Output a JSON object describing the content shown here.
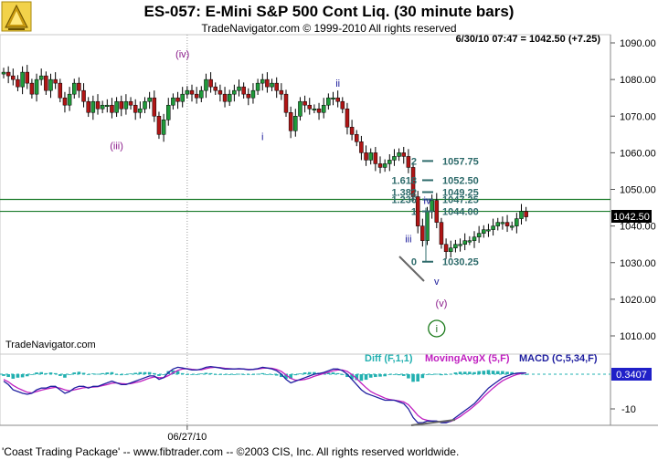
{
  "header": {
    "title": "ES-057:  E-Mini S&P 500 Cont Liq.  (30 minute bars)",
    "subtitle": "TradeNavigator.com © 1999-2010 All rights reserved",
    "last_quote": "6/30/10 07:47 = 1042.50 (+7.25)",
    "watermark": "TradeNavigator.com"
  },
  "footer": {
    "text": "'Coast Trading Package' -- www.fibtrader.com -- ©2003 CIS, Inc. All rights reserved worldwide."
  },
  "colors": {
    "up_bar": "#1f9a3a",
    "down_bar": "#b01515",
    "hline": "#1a7a2a",
    "wave_purple": "#8a1a8a",
    "wave_blue": "#1a1a9a",
    "fib_text": "#2e6b6b",
    "diff_hist": "#22b0b0",
    "movavg": "#c020c0",
    "macd": "#2020a0"
  },
  "chart_data": [
    {
      "type": "candlestick",
      "ylim": [
        1002,
        1093
      ],
      "yticks": [
        1010,
        1020,
        1030,
        1040,
        1050,
        1060,
        1070,
        1080,
        1090
      ],
      "ytick_labels": [
        "1010.00",
        "1020.00",
        "1030.00",
        "1040.00",
        "1050.00",
        "1060.00",
        "1070.00",
        "1080.00",
        "1090.00"
      ],
      "xtick": {
        "label": "06/27/10",
        "bar_index": 39
      },
      "bars_count": 112,
      "closes": [
        1082,
        1081,
        1080,
        1078,
        1082,
        1079,
        1076,
        1080,
        1081,
        1077,
        1080,
        1079,
        1075,
        1073,
        1076,
        1079,
        1077,
        1074,
        1071,
        1074,
        1072,
        1073,
        1073,
        1071,
        1074,
        1072,
        1074,
        1073,
        1071,
        1072,
        1074,
        1075,
        1070,
        1065,
        1069,
        1073,
        1075,
        1074,
        1076,
        1077,
        1076,
        1075,
        1077,
        1080,
        1078,
        1077,
        1076,
        1074,
        1076,
        1077,
        1078,
        1076,
        1075,
        1077,
        1079,
        1080,
        1078,
        1079,
        1077,
        1076,
        1071,
        1066,
        1070,
        1074,
        1073,
        1072,
        1072,
        1071,
        1073,
        1075,
        1075,
        1074,
        1072,
        1067,
        1065,
        1063,
        1060,
        1058,
        1060,
        1057,
        1056,
        1057,
        1058,
        1059,
        1060,
        1059,
        1056,
        1048,
        1040,
        1036,
        1044,
        1047,
        1041,
        1035,
        1033,
        1034,
        1035,
        1035,
        1036,
        1036,
        1037,
        1038,
        1039,
        1039,
        1040,
        1041,
        1041,
        1040,
        1040,
        1042,
        1044,
        1042.5
      ],
      "last_price_label": "1042.50",
      "horizontal_lines": [
        1047.25,
        1044.0
      ],
      "fib_levels": [
        {
          "ratio": "2",
          "price": "1057.75"
        },
        {
          "ratio": "1.618",
          "price": "1052.50"
        },
        {
          "ratio": "1.382",
          "price": "1049.25"
        },
        {
          "ratio": "1.236",
          "price": "1047.25"
        },
        {
          "ratio": "1",
          "price": "1044.00"
        },
        {
          "ratio": "0",
          "price": "1030.25"
        }
      ],
      "wave_labels": [
        {
          "text": "(iv)",
          "bar": 38,
          "y": 1086,
          "color": "purple"
        },
        {
          "text": "(iii)",
          "bar": 24,
          "y": 1061,
          "color": "purple"
        },
        {
          "text": "ii",
          "bar": 71,
          "y": 1078,
          "color": "blue"
        },
        {
          "text": "i",
          "bar": 55,
          "y": 1063.5,
          "color": "blue"
        },
        {
          "text": "iv",
          "bar": 90,
          "y": 1046,
          "color": "blue"
        },
        {
          "text": "iii",
          "bar": 86,
          "y": 1035.5,
          "color": "blue"
        },
        {
          "text": "v",
          "bar": 92,
          "y": 1024,
          "color": "blue"
        },
        {
          "text": "(v)",
          "bar": 93,
          "y": 1018,
          "color": "purple"
        },
        {
          "text": "i",
          "bar": 92,
          "y": 1011,
          "color": "green_circle"
        }
      ]
    },
    {
      "type": "macd",
      "ylim": [
        -16,
        6
      ],
      "yticks": [
        -10
      ],
      "ytick_labels": [
        "-10"
      ],
      "legend": {
        "diff": "Diff (F,1,1)",
        "movavg": "MovingAvgX (5,F)",
        "macd": "MACD (C,5,34,F)"
      },
      "last_value_label": "0.3407",
      "macd": [
        -2,
        -3,
        -4.5,
        -5,
        -5.5,
        -5.8,
        -5.5,
        -4.5,
        -4,
        -4,
        -3.5,
        -3.5,
        -4.5,
        -5.5,
        -5,
        -4,
        -3.5,
        -3.5,
        -4,
        -3.5,
        -3.5,
        -3,
        -2.5,
        -2,
        -2.5,
        -3,
        -3,
        -2.5,
        -2,
        -1.5,
        -1,
        -0.5,
        -0.5,
        -1.5,
        -1,
        0.5,
        1.5,
        2,
        1.8,
        1.5,
        1.2,
        1.2,
        1.5,
        2,
        2.2,
        2,
        1.8,
        1.5,
        1.5,
        1.5,
        1.6,
        1.5,
        1.3,
        1.4,
        1.6,
        2,
        1.8,
        1.5,
        1,
        0,
        -1.5,
        -2.5,
        -2,
        -1.5,
        -1,
        -0.5,
        0,
        0.2,
        0.5,
        1,
        1.5,
        1.5,
        1,
        0,
        -1.5,
        -3,
        -4.5,
        -5.5,
        -6,
        -6.5,
        -7,
        -7.5,
        -7.5,
        -7.5,
        -8,
        -8.5,
        -10,
        -12.5,
        -14,
        -14,
        -13.5,
        -13.5,
        -13.5,
        -14,
        -14,
        -13.5,
        -12.5,
        -11.5,
        -10.5,
        -9.5,
        -8.5,
        -7,
        -5.5,
        -4,
        -3,
        -2,
        -1,
        -0.5,
        0,
        0.3,
        0.4,
        0.34
      ],
      "movavg": [
        -1.5,
        -2.2,
        -3.2,
        -4,
        -4.6,
        -5.2,
        -5.4,
        -5,
        -4.6,
        -4.3,
        -4,
        -3.8,
        -4,
        -4.5,
        -4.8,
        -4.5,
        -4.2,
        -3.9,
        -3.8,
        -3.7,
        -3.6,
        -3.3,
        -3,
        -2.6,
        -2.5,
        -2.7,
        -2.8,
        -2.7,
        -2.4,
        -2.1,
        -1.6,
        -1.1,
        -0.8,
        -1,
        -1,
        -0.4,
        0.4,
        1.1,
        1.5,
        1.6,
        1.4,
        1.3,
        1.3,
        1.6,
        1.9,
        2,
        1.9,
        1.7,
        1.6,
        1.5,
        1.5,
        1.5,
        1.4,
        1.4,
        1.5,
        1.7,
        1.8,
        1.7,
        1.4,
        0.8,
        -0.2,
        -1.2,
        -1.7,
        -1.7,
        -1.5,
        -1.1,
        -0.6,
        -0.2,
        0.2,
        0.6,
        1,
        1.2,
        1.2,
        0.8,
        -0.1,
        -1.3,
        -2.6,
        -3.9,
        -5,
        -5.7,
        -6.3,
        -6.9,
        -7.3,
        -7.5,
        -7.7,
        -8,
        -8.8,
        -10.3,
        -11.9,
        -12.9,
        -13.3,
        -13.5,
        -13.6,
        -13.7,
        -13.8,
        -13.6,
        -13,
        -12.2,
        -11.2,
        -10.2,
        -9.1,
        -7.9,
        -6.5,
        -5.2,
        -4,
        -2.9,
        -1.9,
        -1.2,
        -0.6,
        -0.1,
        0.2,
        0.34
      ],
      "diff": [
        -0.5,
        -0.8,
        -1.3,
        -1,
        -0.9,
        -0.6,
        -0.1,
        0.5,
        0.6,
        0.3,
        0.5,
        0.3,
        -0.5,
        -1,
        -0.2,
        0.5,
        0.7,
        0.4,
        -0.2,
        0.2,
        0.1,
        0.3,
        0.5,
        0.6,
        0,
        -0.3,
        -0.2,
        0.2,
        0.4,
        0.6,
        0.6,
        0.6,
        0.3,
        -0.5,
        0,
        0.9,
        1.1,
        0.9,
        0.3,
        -0.1,
        -0.2,
        -0.1,
        0.2,
        0.4,
        0.3,
        0,
        -0.1,
        -0.2,
        -0.1,
        0,
        0.1,
        0,
        -0.1,
        0,
        0.1,
        0.3,
        0,
        -0.2,
        -0.4,
        -0.8,
        -1.3,
        -1.3,
        -0.3,
        0.2,
        0.5,
        0.6,
        0.6,
        0.4,
        0.3,
        0.4,
        0.5,
        0.3,
        -0.2,
        -0.8,
        -1.4,
        -1.7,
        -1.9,
        -1.6,
        -1,
        -0.8,
        -0.7,
        -0.6,
        -0.2,
        0,
        -0.3,
        -0.5,
        -1.2,
        -2.2,
        -2.1,
        -1.1,
        -0.2,
        0,
        0.1,
        -0.3,
        -0.2,
        0.1,
        0.5,
        0.7,
        0.7,
        0.7,
        0.6,
        0.9,
        1,
        1.2,
        1,
        0.9,
        0.9,
        0.7,
        0.6,
        0.4,
        0.2,
        0
      ]
    }
  ]
}
